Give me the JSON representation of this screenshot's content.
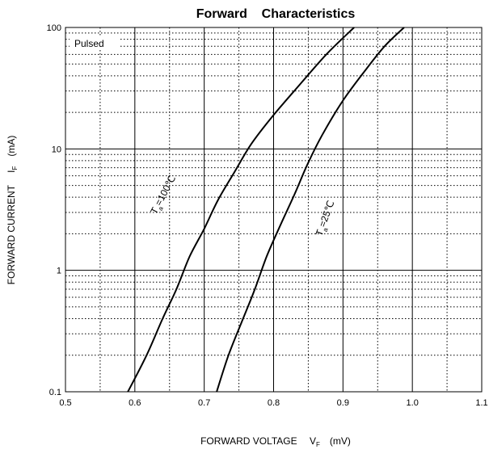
{
  "chart_data": {
    "type": "line",
    "title": "Forward    Characteristics",
    "xlabel": "FORWARD VOLTAGE",
    "xlabel_symbol": "V",
    "xlabel_sub": "F",
    "xlabel_unit": "(mV)",
    "ylabel": "FORWARD CURRENT",
    "ylabel_symbol": "I",
    "ylabel_sub": "F",
    "ylabel_unit": "(mA)",
    "xlim": [
      0.5,
      1.1
    ],
    "ylim": [
      0.1,
      100
    ],
    "yscale": "log",
    "grid": true,
    "x_ticks": [
      "0.5",
      "0.6",
      "0.7",
      "0.8",
      "0.9",
      "1.0",
      "1.1"
    ],
    "y_ticks": [
      "0.1",
      "1",
      "10",
      "100"
    ],
    "annotation": "Pulsed",
    "series": [
      {
        "label_main": "T",
        "label_sub": "a",
        "label_rest": "=100℃",
        "points": [
          [
            0.59,
            0.1
          ],
          [
            0.617,
            0.2
          ],
          [
            0.64,
            0.4
          ],
          [
            0.66,
            0.7
          ],
          [
            0.679,
            1.3
          ],
          [
            0.7,
            2.2
          ],
          [
            0.72,
            3.8
          ],
          [
            0.744,
            6.5
          ],
          [
            0.768,
            11
          ],
          [
            0.8,
            19
          ],
          [
            0.84,
            35
          ],
          [
            0.876,
            60
          ],
          [
            0.916,
            100
          ]
        ]
      },
      {
        "label_main": "T",
        "label_sub": "a",
        "label_rest": "=25℃",
        "points": [
          [
            0.718,
            0.1
          ],
          [
            0.735,
            0.2
          ],
          [
            0.756,
            0.4
          ],
          [
            0.773,
            0.7
          ],
          [
            0.79,
            1.3
          ],
          [
            0.809,
            2.3
          ],
          [
            0.83,
            4.2
          ],
          [
            0.849,
            7.5
          ],
          [
            0.87,
            13
          ],
          [
            0.9,
            25
          ],
          [
            0.933,
            45
          ],
          [
            0.96,
            70
          ],
          [
            0.988,
            100
          ]
        ]
      }
    ]
  }
}
